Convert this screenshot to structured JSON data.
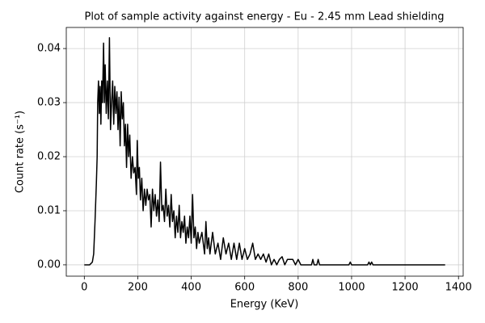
{
  "chart_data": {
    "type": "line",
    "title": "Plot of sample activity against energy - Eu - 2.45 mm Lead shielding",
    "xlabel": "Energy (KeV)",
    "ylabel": "Count rate (s⁻¹)",
    "x": [
      0,
      20,
      30,
      35,
      40,
      45,
      48,
      50,
      53,
      56,
      59,
      62,
      65,
      68,
      72,
      75,
      78,
      82,
      86,
      90,
      94,
      98,
      102,
      106,
      110,
      114,
      118,
      122,
      126,
      130,
      134,
      138,
      142,
      146,
      150,
      154,
      158,
      162,
      166,
      170,
      175,
      180,
      185,
      190,
      195,
      198,
      202,
      206,
      210,
      215,
      220,
      225,
      230,
      235,
      240,
      245,
      250,
      255,
      260,
      265,
      270,
      275,
      280,
      285,
      290,
      295,
      300,
      305,
      310,
      315,
      320,
      325,
      330,
      335,
      340,
      345,
      350,
      355,
      360,
      365,
      370,
      375,
      380,
      385,
      390,
      395,
      400,
      405,
      410,
      415,
      420,
      425,
      430,
      440,
      450,
      455,
      460,
      465,
      470,
      480,
      490,
      500,
      510,
      520,
      530,
      540,
      550,
      560,
      570,
      580,
      590,
      600,
      610,
      620,
      630,
      640,
      650,
      660,
      670,
      680,
      690,
      700,
      710,
      720,
      730,
      740,
      750,
      760,
      780,
      790,
      800,
      810,
      850,
      855,
      860,
      870,
      875,
      880,
      990,
      995,
      1000,
      1060,
      1065,
      1070,
      1075,
      1080,
      1350
    ],
    "series": [
      {
        "name": "Eu",
        "color": "#000000",
        "values": [
          0,
          0,
          0.0005,
          0.002,
          0.008,
          0.015,
          0.02,
          0.03,
          0.034,
          0.028,
          0.033,
          0.026,
          0.034,
          0.03,
          0.041,
          0.03,
          0.037,
          0.028,
          0.034,
          0.027,
          0.042,
          0.025,
          0.03,
          0.034,
          0.026,
          0.033,
          0.028,
          0.032,
          0.025,
          0.031,
          0.022,
          0.032,
          0.027,
          0.03,
          0.022,
          0.026,
          0.018,
          0.026,
          0.02,
          0.024,
          0.016,
          0.02,
          0.017,
          0.018,
          0.013,
          0.023,
          0.016,
          0.018,
          0.012,
          0.016,
          0.01,
          0.014,
          0.011,
          0.014,
          0.012,
          0.013,
          0.007,
          0.014,
          0.01,
          0.013,
          0.009,
          0.012,
          0.008,
          0.019,
          0.01,
          0.011,
          0.008,
          0.014,
          0.009,
          0.011,
          0.007,
          0.013,
          0.008,
          0.01,
          0.005,
          0.009,
          0.006,
          0.011,
          0.005,
          0.008,
          0.006,
          0.009,
          0.004,
          0.007,
          0.005,
          0.009,
          0.004,
          0.013,
          0.005,
          0.007,
          0.003,
          0.006,
          0.004,
          0.006,
          0.002,
          0.008,
          0.003,
          0.005,
          0.002,
          0.006,
          0.002,
          0.004,
          0.001,
          0.005,
          0.002,
          0.004,
          0.001,
          0.004,
          0.001,
          0.004,
          0.001,
          0.003,
          0.001,
          0.002,
          0.004,
          0.001,
          0.002,
          0.001,
          0.002,
          0.0005,
          0.002,
          0,
          0.001,
          0,
          0.001,
          0.0015,
          0,
          0.001,
          0.001,
          0,
          0.001,
          0,
          0,
          0.001,
          0,
          0,
          0.001,
          0,
          0,
          0.0005,
          0,
          0,
          0.0005,
          0,
          0.0005,
          0,
          0
        ]
      }
    ],
    "xlim": [
      -67.5,
      1417.5
    ],
    "ylim": [
      -0.0021,
      0.0439
    ],
    "xticks": [
      0,
      200,
      400,
      600,
      800,
      1000,
      1200,
      1400
    ],
    "yticks": [
      {
        "value": 0,
        "label": "0.00"
      },
      {
        "value": 0.01,
        "label": "0.01"
      },
      {
        "value": 0.02,
        "label": "0.02"
      },
      {
        "value": 0.03,
        "label": "0.03"
      },
      {
        "value": 0.04,
        "label": "0.04"
      }
    ],
    "grid": true
  }
}
